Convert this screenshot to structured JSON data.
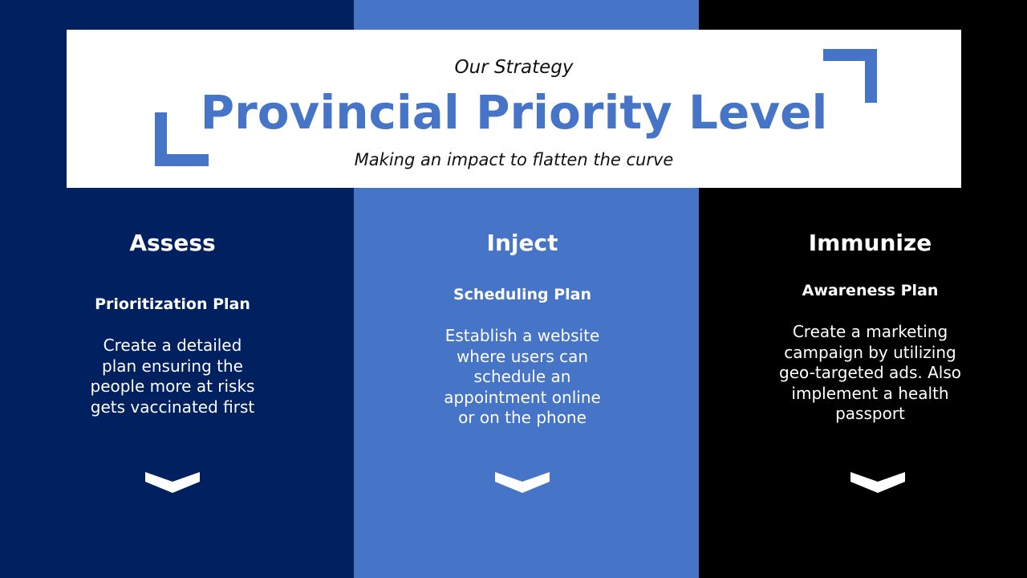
{
  "header": {
    "eyebrow": "Our Strategy",
    "title": "Provincial Priority Level",
    "subtitle": "Making an impact to flatten the curve"
  },
  "columns": [
    {
      "heading": "Assess",
      "plan": "Prioritization Plan",
      "lines": [
        "Create a detailed",
        "plan ensuring the",
        "people more at risks",
        "gets vaccinated first"
      ],
      "color": "#00205f"
    },
    {
      "heading": "Inject",
      "plan": "Scheduling Plan",
      "lines": [
        "Establish a website",
        "where users can",
        "schedule an",
        "appointment online",
        "or on the phone"
      ],
      "color": "#4674c6"
    },
    {
      "heading": "Immunize",
      "plan": "Awareness Plan",
      "lines": [
        "Create a marketing",
        "campaign by utilizing",
        "geo-targeted ads. Also",
        "implement a health",
        "passport"
      ],
      "color": "#000000"
    }
  ],
  "accent_color": "#4674c6",
  "icons": [
    "bracket-corner",
    "chevron-down-icon"
  ]
}
